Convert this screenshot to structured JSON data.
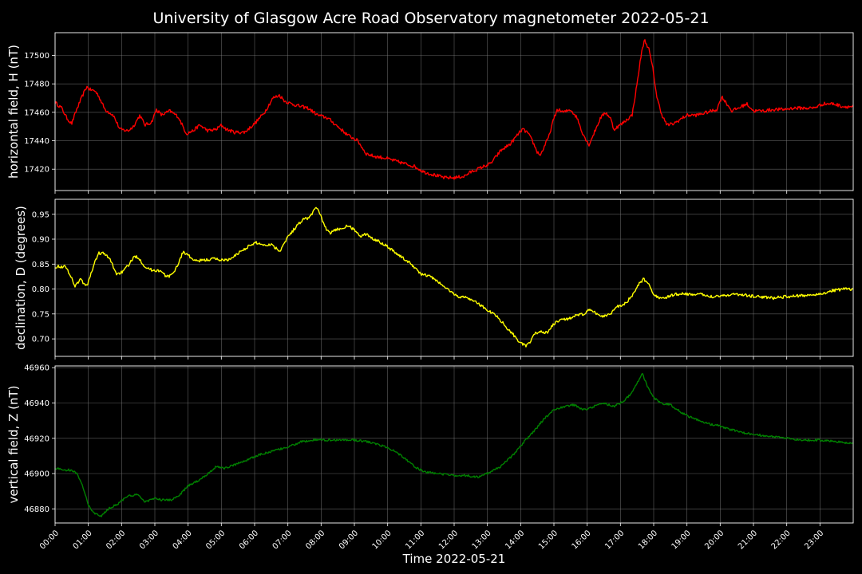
{
  "chart_data": {
    "type": "line",
    "title": "University of Glasgow Acre Road Observatory magnetometer 2022-05-21",
    "xlabel": "Time 2022-05-21",
    "x_ticks": [
      "00:00",
      "01:00",
      "02:00",
      "03:00",
      "04:00",
      "05:00",
      "06:00",
      "07:00",
      "08:00",
      "09:00",
      "10:00",
      "11:00",
      "12:00",
      "13:00",
      "14:00",
      "15:00",
      "16:00",
      "17:00",
      "18:00",
      "19:00",
      "20:00",
      "21:00",
      "22:00",
      "23:00"
    ],
    "xlim": [
      0,
      24
    ],
    "grid": true,
    "panels": [
      {
        "ylabel": "horizontal field, H (nT)",
        "color": "#ff0000",
        "ylim": [
          17405,
          17516
        ],
        "yticks": [
          17420,
          17440,
          17460,
          17480,
          17500
        ],
        "noise": 1.2,
        "points": [
          [
            0,
            17467
          ],
          [
            0.2,
            17463
          ],
          [
            0.35,
            17456
          ],
          [
            0.5,
            17452
          ],
          [
            0.65,
            17462
          ],
          [
            0.85,
            17473
          ],
          [
            0.95,
            17478
          ],
          [
            1.05,
            17476
          ],
          [
            1.2,
            17475
          ],
          [
            1.3,
            17472
          ],
          [
            1.5,
            17462
          ],
          [
            1.75,
            17458
          ],
          [
            1.95,
            17448
          ],
          [
            2.2,
            17447
          ],
          [
            2.35,
            17450
          ],
          [
            2.55,
            17458
          ],
          [
            2.7,
            17451
          ],
          [
            2.9,
            17453
          ],
          [
            3.05,
            17462
          ],
          [
            3.2,
            17458
          ],
          [
            3.45,
            17461
          ],
          [
            3.7,
            17457
          ],
          [
            3.95,
            17445
          ],
          [
            4.15,
            17447
          ],
          [
            4.35,
            17451
          ],
          [
            4.6,
            17447
          ],
          [
            4.85,
            17448
          ],
          [
            5,
            17451
          ],
          [
            5.15,
            17448
          ],
          [
            5.4,
            17446
          ],
          [
            5.7,
            17446
          ],
          [
            6,
            17452
          ],
          [
            6.3,
            17460
          ],
          [
            6.55,
            17470
          ],
          [
            6.75,
            17472
          ],
          [
            6.9,
            17468
          ],
          [
            7.1,
            17466
          ],
          [
            7.4,
            17464
          ],
          [
            7.6,
            17463
          ],
          [
            7.9,
            17458
          ],
          [
            8.2,
            17456
          ],
          [
            8.5,
            17450
          ],
          [
            8.8,
            17444
          ],
          [
            9.1,
            17440
          ],
          [
            9.35,
            17431
          ],
          [
            9.6,
            17429
          ],
          [
            9.9,
            17428
          ],
          [
            10.2,
            17426
          ],
          [
            10.5,
            17424
          ],
          [
            10.8,
            17422
          ],
          [
            11.1,
            17418
          ],
          [
            11.4,
            17416
          ],
          [
            11.7,
            17414
          ],
          [
            12,
            17414
          ],
          [
            12.3,
            17415
          ],
          [
            12.5,
            17418
          ],
          [
            12.8,
            17421
          ],
          [
            13.1,
            17424
          ],
          [
            13.4,
            17433
          ],
          [
            13.7,
            17438
          ],
          [
            13.9,
            17444
          ],
          [
            14.05,
            17448
          ],
          [
            14.2,
            17446
          ],
          [
            14.35,
            17440
          ],
          [
            14.5,
            17432
          ],
          [
            14.6,
            17430
          ],
          [
            14.75,
            17438
          ],
          [
            14.85,
            17443
          ],
          [
            14.95,
            17452
          ],
          [
            15.1,
            17462
          ],
          [
            15.3,
            17460
          ],
          [
            15.5,
            17462
          ],
          [
            15.7,
            17456
          ],
          [
            15.85,
            17446
          ],
          [
            16.05,
            17437
          ],
          [
            16.2,
            17445
          ],
          [
            16.4,
            17456
          ],
          [
            16.55,
            17460
          ],
          [
            16.7,
            17456
          ],
          [
            16.8,
            17448
          ],
          [
            17.05,
            17452
          ],
          [
            17.2,
            17455
          ],
          [
            17.35,
            17458
          ],
          [
            17.5,
            17480
          ],
          [
            17.62,
            17500
          ],
          [
            17.72,
            17511
          ],
          [
            17.85,
            17505
          ],
          [
            17.98,
            17490
          ],
          [
            18.1,
            17470
          ],
          [
            18.25,
            17458
          ],
          [
            18.4,
            17451
          ],
          [
            18.6,
            17452
          ],
          [
            18.8,
            17455
          ],
          [
            19,
            17458
          ],
          [
            19.3,
            17458
          ],
          [
            19.6,
            17460
          ],
          [
            19.9,
            17462
          ],
          [
            20.05,
            17471
          ],
          [
            20.2,
            17466
          ],
          [
            20.35,
            17461
          ],
          [
            20.55,
            17463
          ],
          [
            20.8,
            17466
          ],
          [
            21,
            17461
          ],
          [
            21.3,
            17461
          ],
          [
            21.6,
            17462
          ],
          [
            21.9,
            17462
          ],
          [
            22.2,
            17463
          ],
          [
            22.5,
            17463
          ],
          [
            22.8,
            17463
          ],
          [
            23.1,
            17466
          ],
          [
            23.4,
            17466
          ],
          [
            23.7,
            17464
          ],
          [
            24,
            17464
          ]
        ]
      },
      {
        "ylabel": "declination, D (degrees)",
        "color": "#ffff00",
        "ylim": [
          0.665,
          0.98
        ],
        "yticks": [
          0.7,
          0.75,
          0.8,
          0.85,
          0.9,
          0.95
        ],
        "noise": 0.003,
        "points": [
          [
            0,
            0.845
          ],
          [
            0.3,
            0.845
          ],
          [
            0.45,
            0.83
          ],
          [
            0.6,
            0.805
          ],
          [
            0.75,
            0.82
          ],
          [
            0.95,
            0.805
          ],
          [
            1.15,
            0.845
          ],
          [
            1.3,
            0.872
          ],
          [
            1.45,
            0.872
          ],
          [
            1.65,
            0.86
          ],
          [
            1.85,
            0.83
          ],
          [
            2.05,
            0.835
          ],
          [
            2.25,
            0.852
          ],
          [
            2.4,
            0.866
          ],
          [
            2.5,
            0.864
          ],
          [
            2.7,
            0.845
          ],
          [
            2.9,
            0.838
          ],
          [
            3.15,
            0.837
          ],
          [
            3.35,
            0.825
          ],
          [
            3.5,
            0.827
          ],
          [
            3.7,
            0.85
          ],
          [
            3.85,
            0.875
          ],
          [
            4,
            0.868
          ],
          [
            4.2,
            0.856
          ],
          [
            4.5,
            0.858
          ],
          [
            4.8,
            0.861
          ],
          [
            5,
            0.858
          ],
          [
            5.3,
            0.86
          ],
          [
            5.5,
            0.872
          ],
          [
            5.8,
            0.885
          ],
          [
            6.05,
            0.893
          ],
          [
            6.3,
            0.888
          ],
          [
            6.5,
            0.89
          ],
          [
            6.75,
            0.876
          ],
          [
            7,
            0.905
          ],
          [
            7.25,
            0.925
          ],
          [
            7.45,
            0.94
          ],
          [
            7.65,
            0.943
          ],
          [
            7.85,
            0.965
          ],
          [
            7.95,
            0.955
          ],
          [
            8.1,
            0.925
          ],
          [
            8.25,
            0.912
          ],
          [
            8.5,
            0.92
          ],
          [
            8.8,
            0.926
          ],
          [
            9,
            0.92
          ],
          [
            9.15,
            0.905
          ],
          [
            9.35,
            0.91
          ],
          [
            9.6,
            0.9
          ],
          [
            9.9,
            0.89
          ],
          [
            10.2,
            0.875
          ],
          [
            10.5,
            0.86
          ],
          [
            10.75,
            0.848
          ],
          [
            11,
            0.83
          ],
          [
            11.3,
            0.825
          ],
          [
            11.6,
            0.81
          ],
          [
            11.9,
            0.795
          ],
          [
            12.1,
            0.785
          ],
          [
            12.4,
            0.783
          ],
          [
            12.7,
            0.772
          ],
          [
            13,
            0.758
          ],
          [
            13.3,
            0.745
          ],
          [
            13.55,
            0.725
          ],
          [
            13.8,
            0.707
          ],
          [
            14,
            0.692
          ],
          [
            14.15,
            0.685
          ],
          [
            14.3,
            0.695
          ],
          [
            14.45,
            0.712
          ],
          [
            14.6,
            0.715
          ],
          [
            14.8,
            0.712
          ],
          [
            15,
            0.73
          ],
          [
            15.2,
            0.738
          ],
          [
            15.4,
            0.74
          ],
          [
            15.6,
            0.745
          ],
          [
            15.9,
            0.75
          ],
          [
            16.05,
            0.758
          ],
          [
            16.25,
            0.752
          ],
          [
            16.45,
            0.745
          ],
          [
            16.7,
            0.75
          ],
          [
            16.85,
            0.765
          ],
          [
            17,
            0.765
          ],
          [
            17.2,
            0.775
          ],
          [
            17.4,
            0.79
          ],
          [
            17.55,
            0.81
          ],
          [
            17.7,
            0.82
          ],
          [
            17.85,
            0.81
          ],
          [
            18,
            0.79
          ],
          [
            18.2,
            0.78
          ],
          [
            18.45,
            0.785
          ],
          [
            18.7,
            0.79
          ],
          [
            19,
            0.79
          ],
          [
            19.4,
            0.789
          ],
          [
            19.8,
            0.785
          ],
          [
            20.2,
            0.788
          ],
          [
            20.5,
            0.79
          ],
          [
            20.9,
            0.786
          ],
          [
            21.3,
            0.784
          ],
          [
            21.6,
            0.782
          ],
          [
            22,
            0.785
          ],
          [
            22.5,
            0.787
          ],
          [
            23,
            0.79
          ],
          [
            23.4,
            0.797
          ],
          [
            23.7,
            0.8
          ],
          [
            24,
            0.8
          ]
        ]
      },
      {
        "ylabel": "vertical field, Z (nT)",
        "color": "#008000",
        "ylim": [
          46872,
          46961
        ],
        "yticks": [
          46880,
          46900,
          46920,
          46940,
          46960
        ],
        "noise": 0.6,
        "points": [
          [
            0,
            46903
          ],
          [
            0.3,
            46902
          ],
          [
            0.5,
            46902
          ],
          [
            0.65,
            46900
          ],
          [
            0.85,
            46892
          ],
          [
            1,
            46882
          ],
          [
            1.2,
            46877
          ],
          [
            1.4,
            46876
          ],
          [
            1.6,
            46880
          ],
          [
            1.9,
            46883
          ],
          [
            2.15,
            46887
          ],
          [
            2.5,
            46888
          ],
          [
            2.7,
            46884
          ],
          [
            3,
            46886
          ],
          [
            3.2,
            46885
          ],
          [
            3.5,
            46885
          ],
          [
            3.75,
            46888
          ],
          [
            4,
            46893
          ],
          [
            4.3,
            46896
          ],
          [
            4.6,
            46900
          ],
          [
            4.85,
            46904
          ],
          [
            5.1,
            46903
          ],
          [
            5.4,
            46905
          ],
          [
            5.8,
            46908
          ],
          [
            6.2,
            46911
          ],
          [
            6.6,
            46913
          ],
          [
            7,
            46915
          ],
          [
            7.4,
            46918
          ],
          [
            7.8,
            46919
          ],
          [
            8.2,
            46919
          ],
          [
            8.6,
            46919
          ],
          [
            9,
            46919
          ],
          [
            9.4,
            46918
          ],
          [
            9.8,
            46916
          ],
          [
            10.2,
            46913
          ],
          [
            10.5,
            46909
          ],
          [
            10.8,
            46904
          ],
          [
            11.1,
            46901
          ],
          [
            11.5,
            46900
          ],
          [
            11.9,
            46899
          ],
          [
            12.3,
            46899
          ],
          [
            12.7,
            46898
          ],
          [
            13,
            46900
          ],
          [
            13.4,
            46904
          ],
          [
            13.8,
            46911
          ],
          [
            14.1,
            46918
          ],
          [
            14.4,
            46924
          ],
          [
            14.7,
            46931
          ],
          [
            15,
            46936
          ],
          [
            15.3,
            46938
          ],
          [
            15.6,
            46939
          ],
          [
            15.9,
            46936
          ],
          [
            16.2,
            46938
          ],
          [
            16.5,
            46940
          ],
          [
            16.8,
            46938
          ],
          [
            17.1,
            46941
          ],
          [
            17.3,
            46945
          ],
          [
            17.5,
            46951
          ],
          [
            17.65,
            46957
          ],
          [
            17.8,
            46950
          ],
          [
            18,
            46943
          ],
          [
            18.2,
            46940
          ],
          [
            18.5,
            46939
          ],
          [
            18.8,
            46935
          ],
          [
            19.1,
            46932
          ],
          [
            19.4,
            46930
          ],
          [
            19.7,
            46928
          ],
          [
            20,
            46927
          ],
          [
            20.3,
            46925
          ],
          [
            20.7,
            46923
          ],
          [
            21.1,
            46922
          ],
          [
            21.5,
            46921
          ],
          [
            22,
            46920
          ],
          [
            22.5,
            46919
          ],
          [
            23,
            46919
          ],
          [
            23.5,
            46918
          ],
          [
            24,
            46917
          ]
        ]
      }
    ]
  }
}
